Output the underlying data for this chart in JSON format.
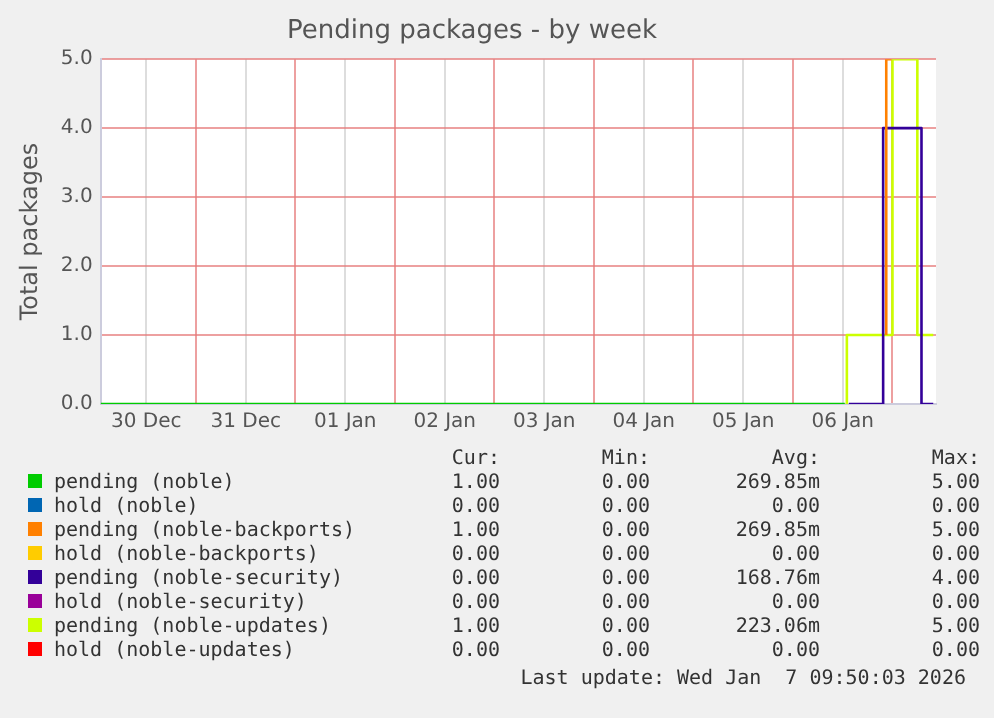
{
  "chart_data": {
    "type": "line",
    "title": "Pending packages - by week",
    "ylabel": "Total packages",
    "xlim": [
      "2025-12-30T01:00",
      "2026-01-07T10:30"
    ],
    "xticks": [
      {
        "value": "2025-12-30T12:00",
        "label": "30 Dec"
      },
      {
        "value": "2025-12-31T00:00",
        "label": null
      },
      {
        "value": "2025-12-31T12:00",
        "label": "31 Dec"
      },
      {
        "value": "2026-01-01T00:00",
        "label": null
      },
      {
        "value": "2026-01-01T12:00",
        "label": "01 Jan"
      },
      {
        "value": "2026-01-02T00:00",
        "label": null
      },
      {
        "value": "2026-01-02T12:00",
        "label": "02 Jan"
      },
      {
        "value": "2026-01-03T00:00",
        "label": null
      },
      {
        "value": "2026-01-03T12:00",
        "label": "03 Jan"
      },
      {
        "value": "2026-01-04T00:00",
        "label": null
      },
      {
        "value": "2026-01-04T12:00",
        "label": "04 Jan"
      },
      {
        "value": "2026-01-05T00:00",
        "label": null
      },
      {
        "value": "2026-01-05T12:00",
        "label": "05 Jan"
      },
      {
        "value": "2026-01-06T00:00",
        "label": null
      },
      {
        "value": "2026-01-06T12:00",
        "label": "06 Jan"
      },
      {
        "value": "2026-01-07T00:00",
        "label": null
      }
    ],
    "ylim": [
      0,
      5
    ],
    "yticks": [
      {
        "value": 0,
        "label": "0.0"
      },
      {
        "value": 1,
        "label": "1.0"
      },
      {
        "value": 2,
        "label": "2.0"
      },
      {
        "value": 3,
        "label": "3.0"
      },
      {
        "value": 4,
        "label": "4.0"
      },
      {
        "value": 5,
        "label": "5.0"
      }
    ],
    "grid": true,
    "legend": "bottom",
    "marker": "none",
    "line_style": "solid",
    "series": [
      {
        "name": "pending (noble)",
        "color": "#00cc00",
        "x": [
          "2025-12-30T01:00",
          "2026-01-06T12:30"
        ],
        "values": [
          0,
          0
        ]
      },
      {
        "name": "hold (noble)",
        "color": "#0066b3"
      },
      {
        "name": "pending (noble-backports)",
        "color": "#ff8000",
        "x": [
          "2026-01-06T22:30",
          "2026-01-06T22:30",
          "2026-01-06T23:45"
        ],
        "values": [
          1,
          5,
          5
        ]
      },
      {
        "name": "hold (noble-backports)",
        "color": "#ffcc00"
      },
      {
        "name": "pending (noble-security)",
        "color": "#330099",
        "x": [
          "2026-01-06T13:30",
          "2026-01-06T21:45",
          "2026-01-06T21:45",
          "2026-01-07T07:00",
          "2026-01-07T07:00",
          "2026-01-07T09:50"
        ],
        "values": [
          0,
          0,
          4,
          4,
          0,
          0
        ]
      },
      {
        "name": "hold (noble-security)",
        "color": "#990099"
      },
      {
        "name": "pending (noble-updates)",
        "color": "#ccff00",
        "x": [
          "2026-01-06T13:00",
          "2026-01-06T13:00",
          "2026-01-07T00:00",
          "2026-01-07T00:00",
          "2026-01-07T06:00",
          "2026-01-07T06:00",
          "2026-01-07T09:50"
        ],
        "values": [
          0,
          1,
          1,
          5,
          5,
          1,
          1
        ]
      },
      {
        "name": "hold (noble-updates)",
        "color": "#ff0000"
      }
    ],
    "annotations": [
      "Cur:",
      "Min:",
      "Avg:",
      "Max:",
      "1.00",
      "0.00",
      "269.85m",
      "5.00",
      "0.00",
      "0.00",
      "0.00",
      "0.00",
      "1.00",
      "0.00",
      "269.85m",
      "5.00",
      "0.00",
      "0.00",
      "0.00",
      "0.00",
      "0.00",
      "0.00",
      "168.76m",
      "4.00",
      "0.00",
      "0.00",
      "0.00",
      "0.00",
      "1.00",
      "0.00",
      "223.06m",
      "5.00",
      "0.00",
      "0.00",
      "0.00",
      "0.00",
      "Last update: Wed Jan  7 09:50:03 2026"
    ]
  }
}
